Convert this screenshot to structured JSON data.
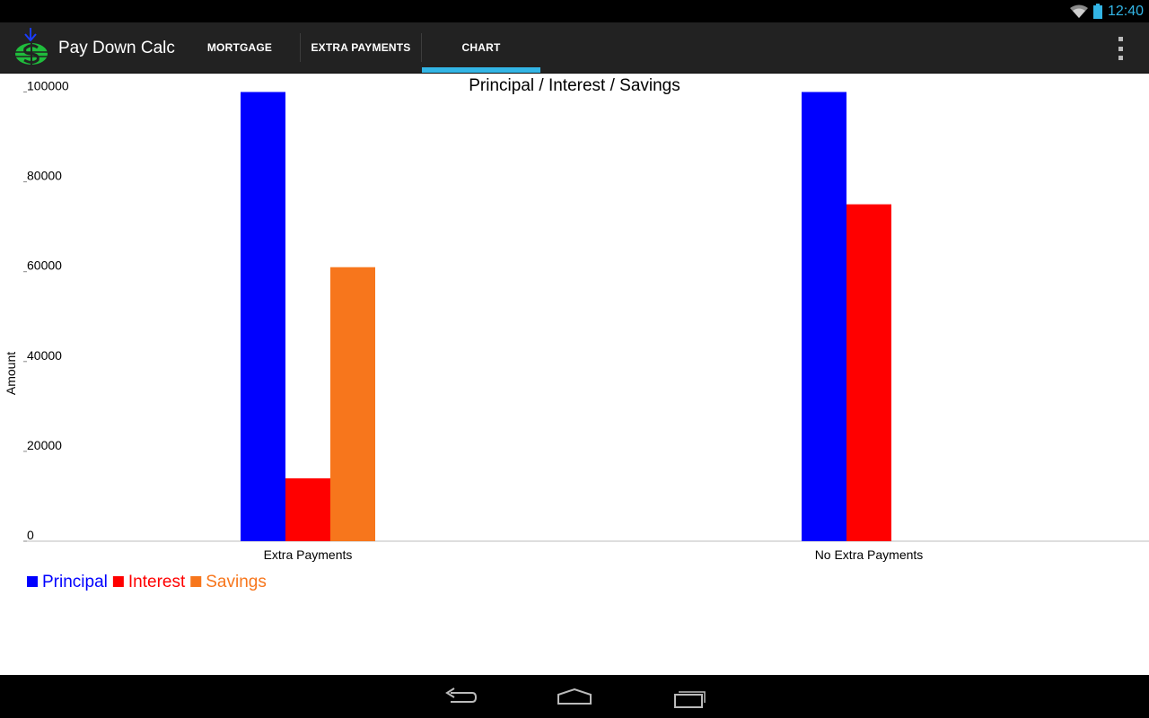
{
  "status_bar": {
    "time": "12:40",
    "icons": [
      "wifi-icon",
      "battery-icon"
    ],
    "accent_color": "#33b5e5"
  },
  "action_bar": {
    "app_title": "Pay Down Calc",
    "logo_icon": "dollar-down-arrow-icon",
    "tabs": [
      {
        "label": "MORTGAGE",
        "selected": false
      },
      {
        "label": "EXTRA PAYMENTS",
        "selected": false
      },
      {
        "label": "CHART",
        "selected": true
      }
    ],
    "overflow_icon": "overflow-menu-icon",
    "selected_tab_color": "#33b5e5"
  },
  "chart_data": {
    "type": "bar",
    "title": "Principal / Interest  / Savings",
    "xlabel": "",
    "ylabel": "Amount",
    "categories": [
      "Extra Payments",
      "No Extra Payments"
    ],
    "series": [
      {
        "name": "Principal",
        "color": "#0000ff",
        "values": [
          100000,
          100000
        ]
      },
      {
        "name": "Interest",
        "color": "#ff0000",
        "values": [
          14000,
          75000
        ]
      },
      {
        "name": "Savings",
        "color": "#f7761c",
        "values": [
          61000,
          0
        ]
      }
    ],
    "y_ticks": [
      "0",
      "20000",
      "40000",
      "60000",
      "80000",
      "100000"
    ],
    "ylim": [
      0,
      101500
    ],
    "grid": false,
    "legend_placement": "bottom-left"
  },
  "nav_bar": {
    "icons": [
      "back-icon",
      "home-icon",
      "recent-apps-icon"
    ]
  }
}
